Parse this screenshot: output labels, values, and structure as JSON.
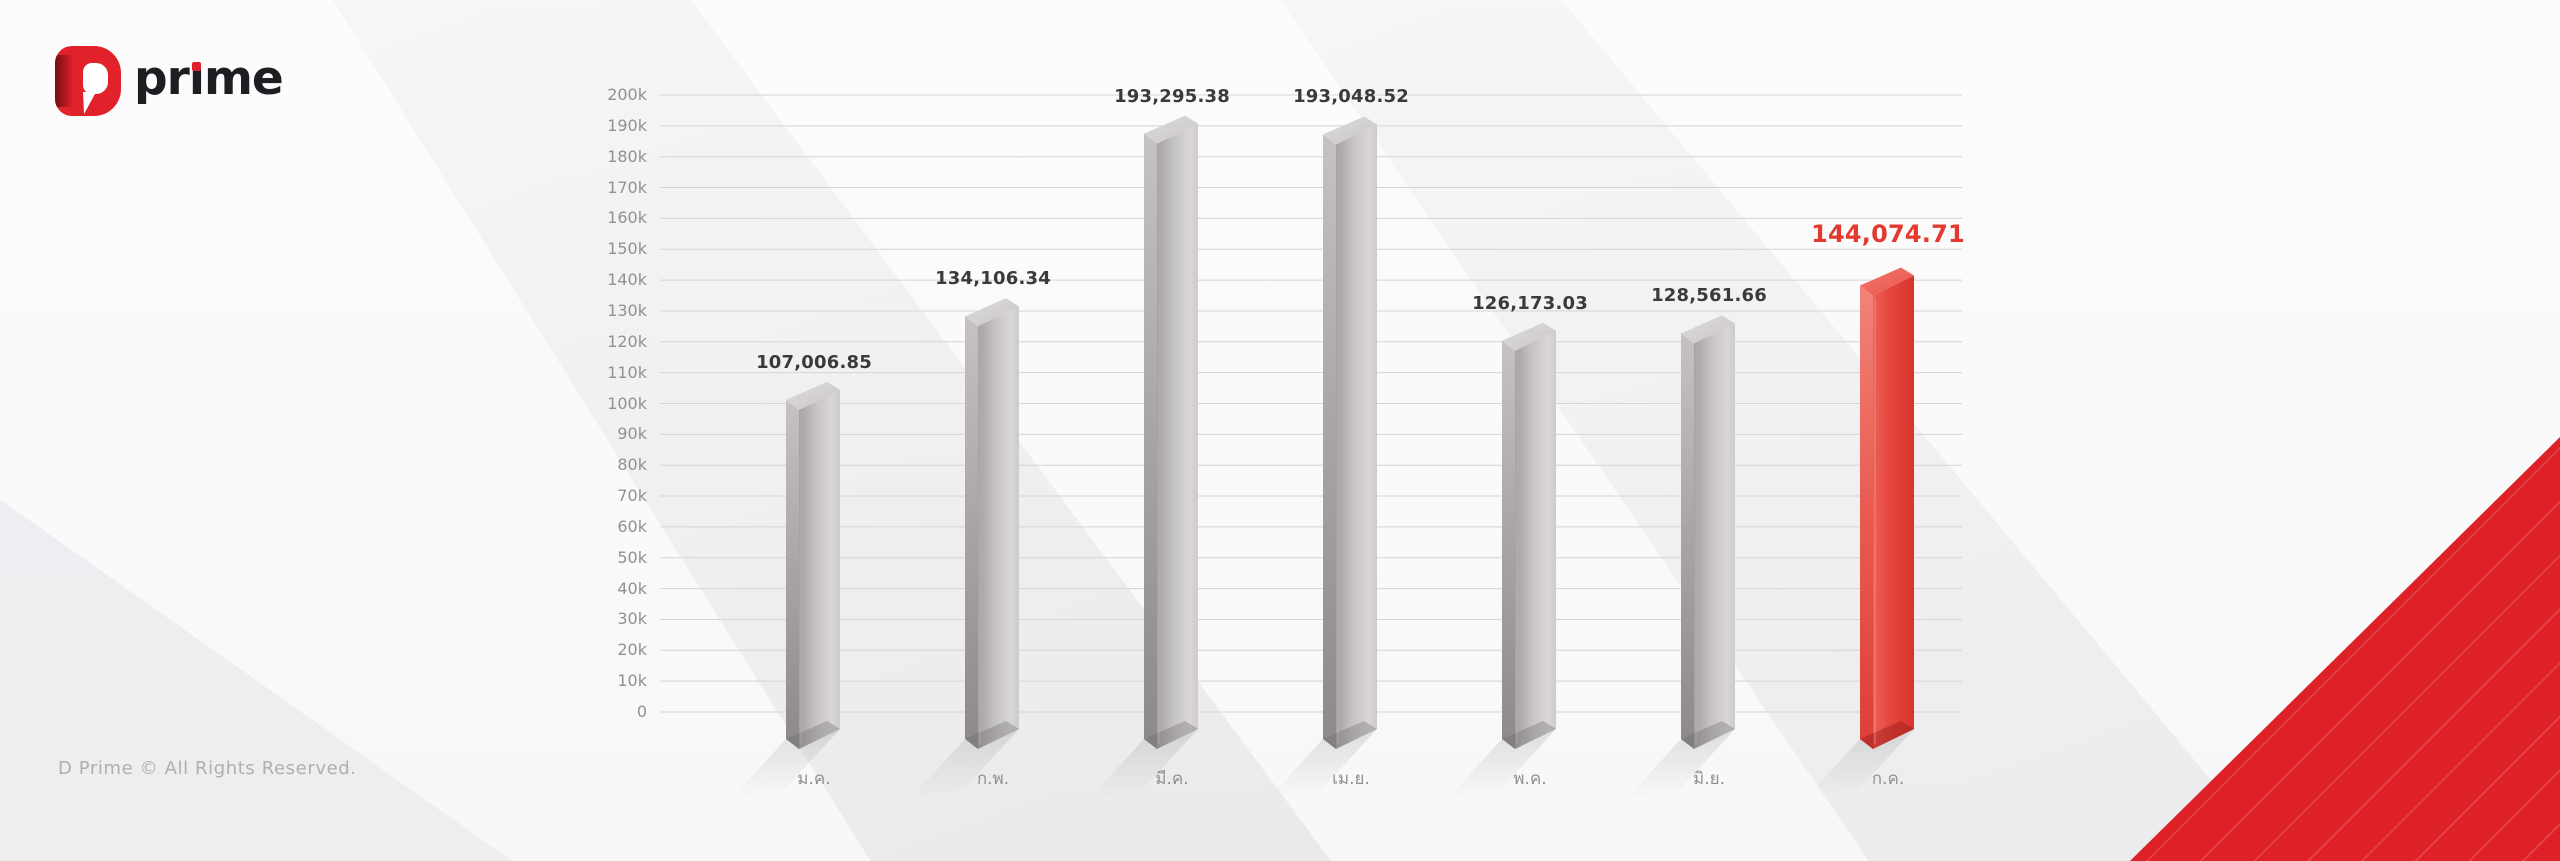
{
  "brand": {
    "wordmark_pre": "pr",
    "wordmark_i": "ı",
    "wordmark_post": "me"
  },
  "footer": {
    "copyright": "D Prime © All Rights Reserved."
  },
  "colors": {
    "accent_red": "#e1222a",
    "bar_gray": "#c7c4c5",
    "bar_red_highlight": "#e2463e",
    "value_label_dark": "#3b393a",
    "value_label_red": "#e23a31",
    "axis_text": "#939091",
    "gridline": "#d6d4d5"
  },
  "chart_data": {
    "type": "bar",
    "title": "",
    "xlabel": "",
    "ylabel": "",
    "categories": [
      "ม.ค.",
      "ก.พ.",
      "มี.ค.",
      "เม.ย.",
      "พ.ค.",
      "มิ.ย.",
      "ก.ค."
    ],
    "values": [
      107006.85,
      134106.34,
      193295.38,
      193048.52,
      126173.03,
      128561.66,
      144074.71
    ],
    "value_labels": [
      "107,006.85",
      "134,106.34",
      "193,295.38",
      "193,048.52",
      "126,173.03",
      "128,561.66",
      "144,074.71"
    ],
    "highlight_index": 6,
    "ylim": [
      0,
      200000
    ],
    "ytick_step": 10000,
    "ytick_labels": [
      "0",
      "10k",
      "20k",
      "30k",
      "40k",
      "50k",
      "60k",
      "70k",
      "80k",
      "90k",
      "100k",
      "110k",
      "120k",
      "130k",
      "140k",
      "150k",
      "160k",
      "170k",
      "180k",
      "190k",
      "200k"
    ],
    "grid": true,
    "legend": false,
    "style": "3d-glass-bars"
  }
}
